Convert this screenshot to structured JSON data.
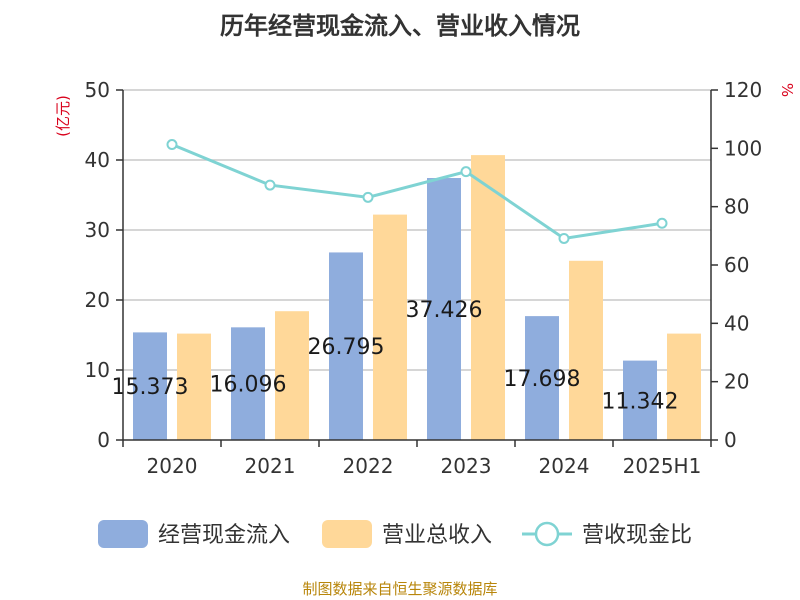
{
  "chart_data": {
    "type": "bar",
    "title": "历年经营现金流入、营业收入情况",
    "categories": [
      "2020",
      "2021",
      "2022",
      "2023",
      "2024",
      "2025H1"
    ],
    "y_left": {
      "unit": "(亿元)",
      "ticks": [
        "0",
        "10",
        "20",
        "30",
        "40",
        "50"
      ],
      "range": [
        0,
        50
      ]
    },
    "y_right": {
      "unit": "%",
      "ticks": [
        "0",
        "20",
        "40",
        "60",
        "80",
        "100",
        "120"
      ],
      "range": [
        0,
        120
      ]
    },
    "series": [
      {
        "name": "经营现金流入",
        "type": "bar",
        "axis": "left",
        "color": "#8faddd",
        "values": [
          15.373,
          16.096,
          26.795,
          37.426,
          17.698,
          11.342
        ],
        "labels": [
          "15.373",
          "16.096",
          "26.795",
          "37.426",
          "17.698",
          "11.342"
        ]
      },
      {
        "name": "营业总收入",
        "type": "bar",
        "axis": "left",
        "color": "#ffd899",
        "values": [
          15.2,
          18.4,
          32.2,
          40.7,
          25.6,
          15.2
        ]
      },
      {
        "name": "营收现金比",
        "type": "line",
        "axis": "right",
        "color": "#7fd3d3",
        "values": [
          101.3,
          87.4,
          83.2,
          92.0,
          69.1,
          74.3
        ]
      }
    ],
    "grid": true,
    "legend_position": "bottom",
    "source": "制图数据来自恒生聚源数据库"
  }
}
